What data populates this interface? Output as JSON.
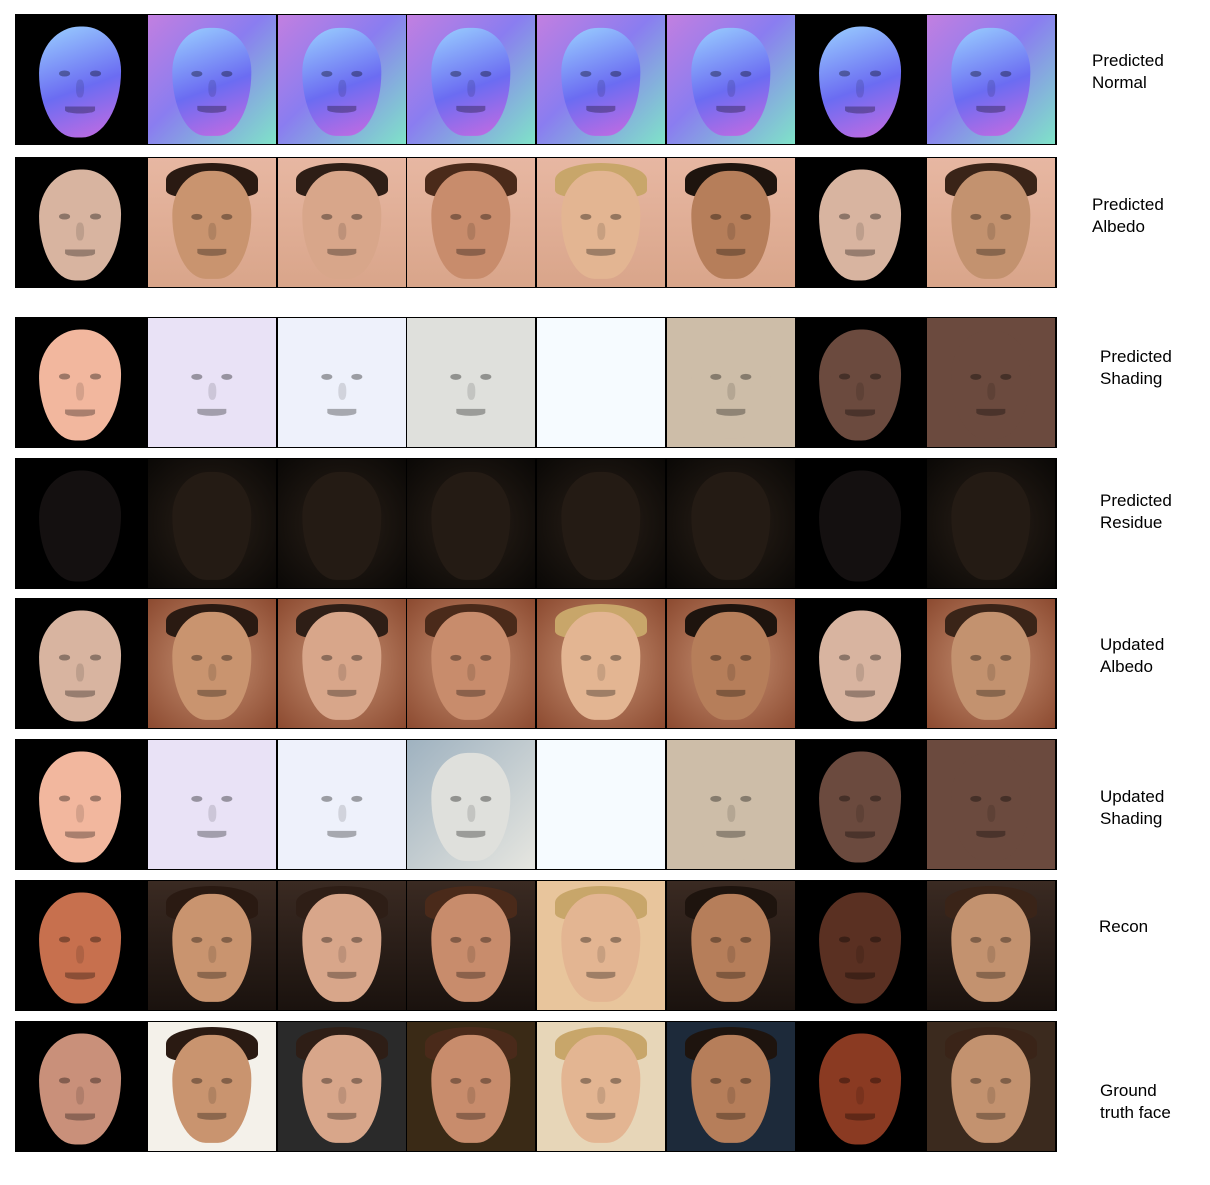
{
  "rows": [
    {
      "label": "Predicted\nNormal",
      "kind": "normal"
    },
    {
      "label": "Predicted\nAlbedo",
      "kind": "albedo"
    },
    {
      "label": "Predicted\nShading",
      "kind": "shading"
    },
    {
      "label": "Predicted\nResidue",
      "kind": "residue"
    },
    {
      "label": "Updated\nAlbedo",
      "kind": "albedo2"
    },
    {
      "label": "Updated\nShading",
      "kind": "shading2"
    },
    {
      "label": "Recon",
      "kind": "recon"
    },
    {
      "label": "Ground\ntruth face",
      "kind": "gt"
    }
  ],
  "columns": [
    "render-face-1",
    "photo-face-1",
    "photo-face-2",
    "photo-face-3",
    "photo-face-4",
    "photo-face-5",
    "render-face-2",
    "photo-face-6"
  ],
  "colors": {
    "normal_bg": "#b98ad8",
    "normal_face": "#7c7cf0",
    "skin": "#d9a58a",
    "shading_light": "#ece6f6",
    "shading_warm": "#cdbda8",
    "shading_dark": "#6b4a3e",
    "residue": "#1a140f"
  }
}
